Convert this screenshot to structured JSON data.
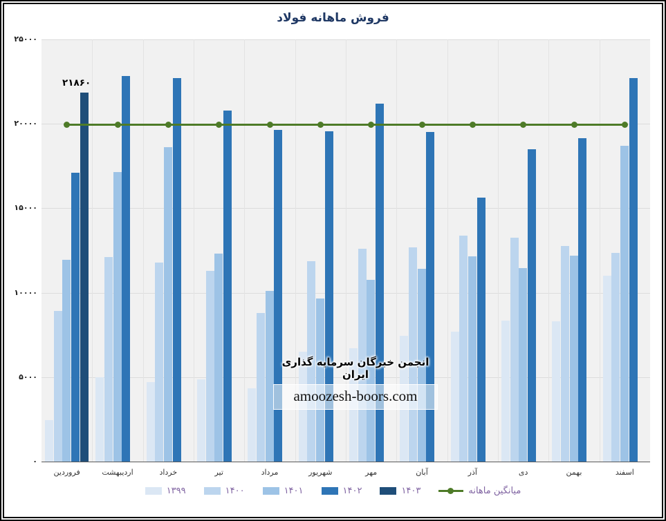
{
  "title": "فروش ماهانه فولاد",
  "annotation": {
    "text": "۲۱۸۶۰",
    "series": "۱۴۰۳",
    "category": "فروردین",
    "value": 21860
  },
  "watermark": {
    "line1": "انجمن خبرگان سرمایه گذاری ایران",
    "line2": "amoozesh-boors.com"
  },
  "colors": {
    "title": "#1f3864",
    "plot_background": "#f1f1f1",
    "gridline": "#dcdcdc",
    "legend_text": "#8064a2",
    "average_line": "#4e7b28"
  },
  "chart_data": {
    "type": "bar",
    "title": "فروش ماهانه فولاد",
    "categories": [
      "فروردین",
      "اردیبهشت",
      "خرداد",
      "تیر",
      "مرداد",
      "شهریور",
      "مهر",
      "آبان",
      "آذر",
      "دی",
      "بهمن",
      "اسفند"
    ],
    "series": [
      {
        "name": "۱۳۹۹",
        "color": "#dbe7f4",
        "values": [
          2450,
          5000,
          4700,
          4850,
          4350,
          6500,
          6700,
          7450,
          7700,
          8350,
          8300,
          11000
        ]
      },
      {
        "name": "۱۴۰۰",
        "color": "#bcd5ee",
        "values": [
          8900,
          12100,
          11800,
          11300,
          8800,
          11850,
          12600,
          12700,
          13400,
          13250,
          12750,
          12350
        ]
      },
      {
        "name": "۱۴۰۱",
        "color": "#9dc3e6",
        "values": [
          11950,
          17150,
          18600,
          12300,
          10100,
          9650,
          10750,
          11400,
          12150,
          11450,
          12200,
          18700
        ]
      },
      {
        "name": "۱۴۰۲",
        "color": "#2e75b6",
        "values": [
          17100,
          22850,
          22700,
          20800,
          19650,
          19550,
          21200,
          19500,
          15650,
          18500,
          19150,
          22700
        ]
      },
      {
        "name": "۱۴۰۳",
        "color": "#1f4e79",
        "values": [
          21860,
          null,
          null,
          null,
          null,
          null,
          null,
          null,
          null,
          null,
          null,
          null
        ]
      }
    ],
    "average_line": {
      "name": "میانگین ماهانه",
      "color": "#4e7b28",
      "value": 19950
    },
    "data_labels": [
      {
        "series": "۱۴۰۳",
        "category": "فروردین",
        "text": "۲۱۸۶۰"
      }
    ],
    "ylim": [
      0,
      25000
    ],
    "ytick_step": 5000,
    "ytick_labels": [
      "۰",
      "۵۰۰۰",
      "۱۰۰۰۰",
      "۱۵۰۰۰",
      "۲۰۰۰۰",
      "۲۵۰۰۰"
    ],
    "grid": true,
    "legend_position": "bottom",
    "category_order": "left-to-right"
  },
  "legend": {
    "items": [
      "۱۳۹۹",
      "۱۴۰۰",
      "۱۴۰۱",
      "۱۴۰۲",
      "۱۴۰۳"
    ],
    "average_label": "میانگین ماهانه"
  }
}
